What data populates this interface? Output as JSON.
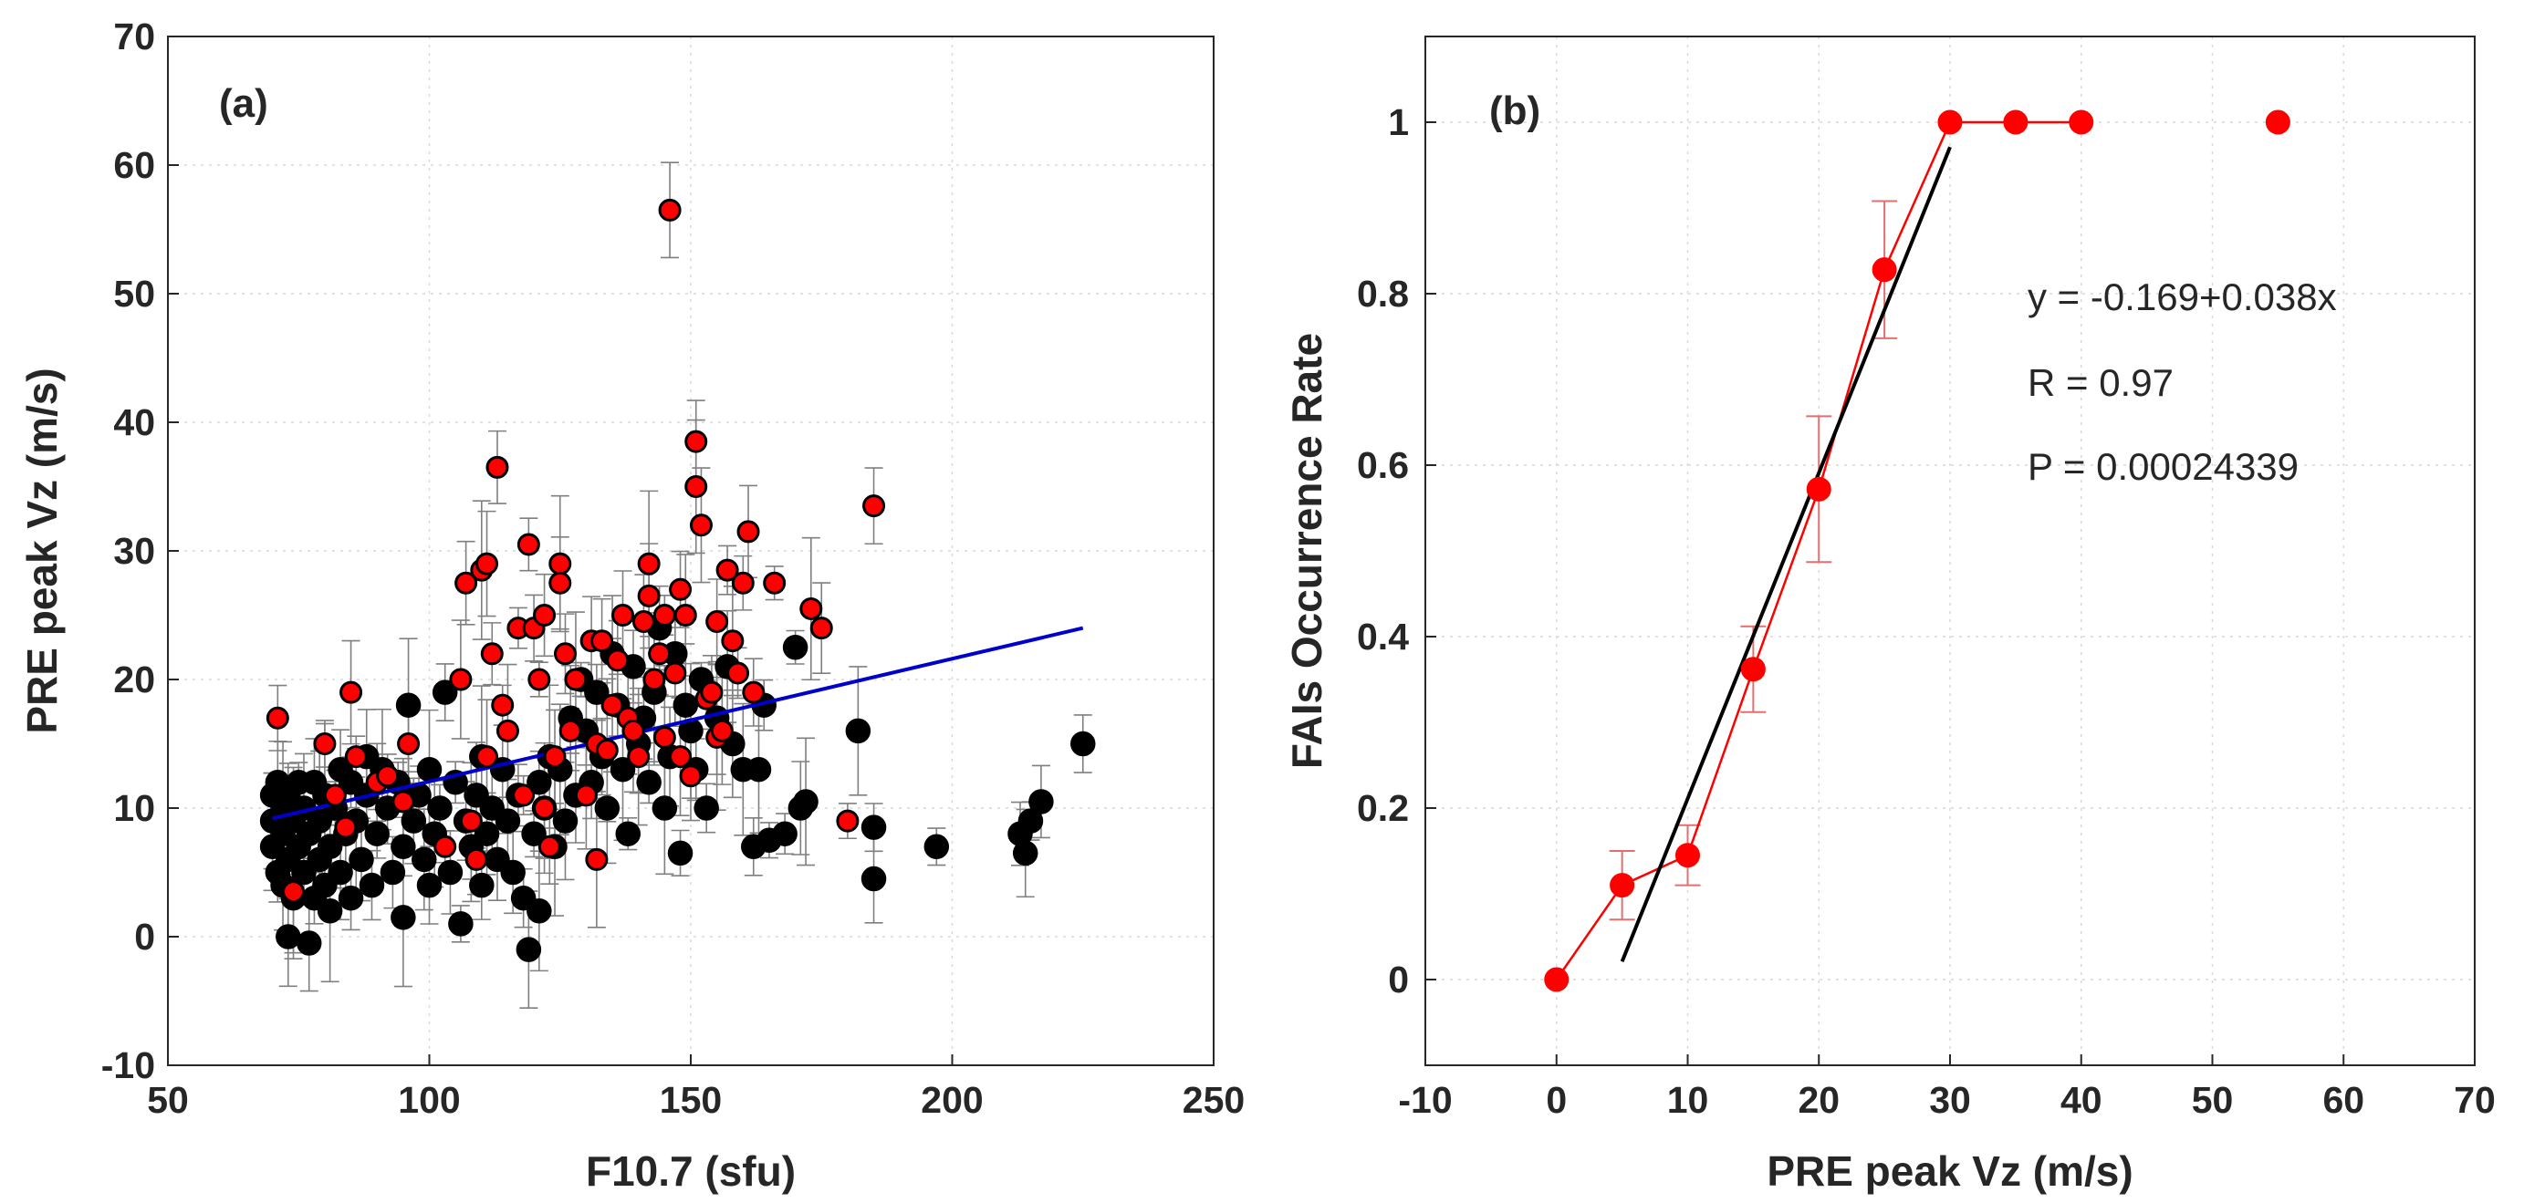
{
  "chart_data": [
    {
      "type": "scatter",
      "panel_label": "(a)",
      "xlabel": "F10.7 (sfu)",
      "ylabel": "PRE peak Vz (m/s)",
      "xlim": [
        50,
        250
      ],
      "ylim": [
        -10,
        70
      ],
      "xticks": [
        50,
        100,
        150,
        200,
        250
      ],
      "yticks": [
        -10,
        0,
        10,
        20,
        30,
        40,
        50,
        60,
        70
      ],
      "grid": true,
      "fit_line": {
        "x": [
          70,
          225
        ],
        "y": [
          9.2,
          24
        ],
        "color": "#0000cc"
      },
      "colors": {
        "no_fai": "#000000",
        "fai": "#ff0000",
        "errorbar": "#7f7f7f"
      },
      "series": [
        {
          "marker_color": "black",
          "points": [
            [
              70,
              7
            ],
            [
              70,
              9
            ],
            [
              70,
              11
            ],
            [
              71,
              5
            ],
            [
              71,
              12
            ],
            [
              72,
              4
            ],
            [
              72,
              8
            ],
            [
              72,
              10
            ],
            [
              73,
              0
            ],
            [
              73,
              6
            ],
            [
              73,
              11
            ],
            [
              74,
              3
            ],
            [
              74,
              9
            ],
            [
              75,
              12
            ],
            [
              75,
              7
            ],
            [
              76,
              5
            ],
            [
              76,
              10
            ],
            [
              77,
              8
            ],
            [
              77,
              -0.5
            ],
            [
              78,
              12
            ],
            [
              78,
              3
            ],
            [
              79,
              6
            ],
            [
              79,
              9
            ],
            [
              80,
              11
            ],
            [
              80,
              4
            ],
            [
              81,
              7
            ],
            [
              81,
              2
            ],
            [
              82,
              10
            ],
            [
              83,
              13
            ],
            [
              83,
              5
            ],
            [
              84,
              8
            ],
            [
              85,
              3
            ],
            [
              85,
              12
            ],
            [
              86,
              9
            ],
            [
              87,
              6
            ],
            [
              88,
              11
            ],
            [
              88,
              14
            ],
            [
              89,
              4
            ],
            [
              90,
              8
            ],
            [
              91,
              13
            ],
            [
              92,
              10
            ],
            [
              93,
              5
            ],
            [
              94,
              12
            ],
            [
              95,
              1.5
            ],
            [
              95,
              7
            ],
            [
              96,
              18
            ],
            [
              97,
              9
            ],
            [
              98,
              11
            ],
            [
              99,
              6
            ],
            [
              100,
              4
            ],
            [
              100,
              13
            ],
            [
              101,
              8
            ],
            [
              102,
              10
            ],
            [
              103,
              19
            ],
            [
              104,
              5
            ],
            [
              105,
              12
            ],
            [
              106,
              1
            ],
            [
              107,
              9
            ],
            [
              108,
              7
            ],
            [
              109,
              11
            ],
            [
              110,
              14
            ],
            [
              110,
              4
            ],
            [
              111,
              8
            ],
            [
              112,
              10
            ],
            [
              113,
              6
            ],
            [
              114,
              13
            ],
            [
              115,
              9
            ],
            [
              116,
              5
            ],
            [
              117,
              11
            ],
            [
              118,
              3
            ],
            [
              119,
              -1
            ],
            [
              120,
              8
            ],
            [
              121,
              12
            ],
            [
              121,
              2
            ],
            [
              122,
              10
            ],
            [
              123,
              14
            ],
            [
              124,
              7
            ],
            [
              125,
              13
            ],
            [
              126,
              9
            ],
            [
              127,
              17
            ],
            [
              128,
              11
            ],
            [
              129,
              20
            ],
            [
              130,
              16
            ],
            [
              131,
              12
            ],
            [
              132,
              19
            ],
            [
              133,
              14
            ],
            [
              134,
              10
            ],
            [
              135,
              22
            ],
            [
              136,
              18
            ],
            [
              137,
              13
            ],
            [
              138,
              8
            ],
            [
              139,
              21
            ],
            [
              140,
              15
            ],
            [
              141,
              17
            ],
            [
              142,
              12
            ],
            [
              143,
              19
            ],
            [
              144,
              24
            ],
            [
              145,
              10
            ],
            [
              146,
              14
            ],
            [
              147,
              22
            ],
            [
              148,
              6.5
            ],
            [
              149,
              18
            ],
            [
              150,
              16
            ],
            [
              151,
              13
            ],
            [
              152,
              20
            ],
            [
              153,
              10
            ],
            [
              155,
              17
            ],
            [
              157,
              21
            ],
            [
              158,
              15
            ],
            [
              160,
              13
            ],
            [
              162,
              7
            ],
            [
              163,
              13
            ],
            [
              164,
              18
            ],
            [
              165,
              7.5
            ],
            [
              168,
              8
            ],
            [
              170,
              22.5
            ],
            [
              171,
              10
            ],
            [
              172,
              10.5
            ],
            [
              182,
              16
            ],
            [
              185,
              8.5
            ],
            [
              185,
              4.5
            ],
            [
              197,
              7
            ],
            [
              213,
              8
            ],
            [
              214,
              6.5
            ],
            [
              215,
              9
            ],
            [
              217,
              10.5
            ],
            [
              225,
              15
            ]
          ]
        },
        {
          "marker_color": "red",
          "points": [
            [
              71,
              17
            ],
            [
              74,
              3.5
            ],
            [
              80,
              15
            ],
            [
              82,
              11
            ],
            [
              84,
              8.5
            ],
            [
              85,
              19
            ],
            [
              86,
              14
            ],
            [
              90,
              12
            ],
            [
              92,
              12.5
            ],
            [
              95,
              10.5
            ],
            [
              96,
              15
            ],
            [
              103,
              7
            ],
            [
              106,
              20
            ],
            [
              107,
              27.5
            ],
            [
              108,
              9
            ],
            [
              109,
              6
            ],
            [
              110,
              28.5
            ],
            [
              111,
              14
            ],
            [
              111,
              29
            ],
            [
              112,
              22
            ],
            [
              113,
              36.5
            ],
            [
              114,
              18
            ],
            [
              115,
              16
            ],
            [
              117,
              24
            ],
            [
              118,
              11
            ],
            [
              119,
              30.5
            ],
            [
              120,
              24
            ],
            [
              121,
              20
            ],
            [
              122,
              10
            ],
            [
              122,
              25
            ],
            [
              123,
              7
            ],
            [
              124,
              14
            ],
            [
              125,
              29
            ],
            [
              125,
              27.5
            ],
            [
              126,
              22
            ],
            [
              127,
              16
            ],
            [
              128,
              20
            ],
            [
              130,
              11
            ],
            [
              131,
              23
            ],
            [
              132,
              6
            ],
            [
              132,
              15
            ],
            [
              133,
              23
            ],
            [
              134,
              14.5
            ],
            [
              135,
              18
            ],
            [
              136,
              21.5
            ],
            [
              137,
              25
            ],
            [
              138,
              17
            ],
            [
              139,
              16
            ],
            [
              140,
              14
            ],
            [
              141,
              24.5
            ],
            [
              142,
              29
            ],
            [
              142,
              26.5
            ],
            [
              143,
              20
            ],
            [
              144,
              22
            ],
            [
              145,
              25
            ],
            [
              145,
              15.5
            ],
            [
              146,
              56.5
            ],
            [
              147,
              20.5
            ],
            [
              148,
              27
            ],
            [
              148,
              14
            ],
            [
              149,
              25
            ],
            [
              150,
              12.5
            ],
            [
              151,
              38.5
            ],
            [
              151,
              35
            ],
            [
              152,
              32
            ],
            [
              153,
              18.5
            ],
            [
              154,
              19
            ],
            [
              155,
              24.5
            ],
            [
              155,
              15.5
            ],
            [
              156,
              16
            ],
            [
              157,
              28.5
            ],
            [
              158,
              23
            ],
            [
              159,
              20.5
            ],
            [
              160,
              27.5
            ],
            [
              161,
              31.5
            ],
            [
              162,
              19
            ],
            [
              166,
              27.5
            ],
            [
              173,
              25.5
            ],
            [
              175,
              24
            ],
            [
              180,
              9
            ],
            [
              185,
              33.5
            ]
          ]
        }
      ]
    },
    {
      "type": "line",
      "panel_label": "(b)",
      "xlabel": "PRE peak Vz (m/s)",
      "ylabel": "FAIs Occurrence Rate",
      "xlim": [
        -10,
        70
      ],
      "ylim": [
        -0.1,
        1.1
      ],
      "xticks": [
        -10,
        0,
        10,
        20,
        30,
        40,
        50,
        60,
        70
      ],
      "yticks": [
        0,
        0.2,
        0.4,
        0.6,
        0.8,
        1
      ],
      "grid": true,
      "series": [
        {
          "color": "#ff0000",
          "x": [
            0,
            5,
            10,
            15,
            20,
            25,
            30,
            35,
            40,
            55
          ],
          "y": [
            0,
            0.11,
            0.145,
            0.362,
            0.572,
            0.828,
            1,
            1,
            1,
            1
          ],
          "err": [
            0,
            0.04,
            0.035,
            0.05,
            0.085,
            0.08,
            0,
            0,
            0,
            0
          ],
          "connected": [
            true,
            true,
            true,
            true,
            true,
            true,
            true,
            true,
            true,
            false
          ]
        }
      ],
      "fit_line": {
        "x": [
          5,
          30
        ],
        "y": [
          0.021,
          0.971
        ],
        "color": "#000000"
      },
      "annotations": [
        "y = -0.169+0.038x",
        "R = 0.97",
        "P = 0.00024339"
      ]
    }
  ]
}
